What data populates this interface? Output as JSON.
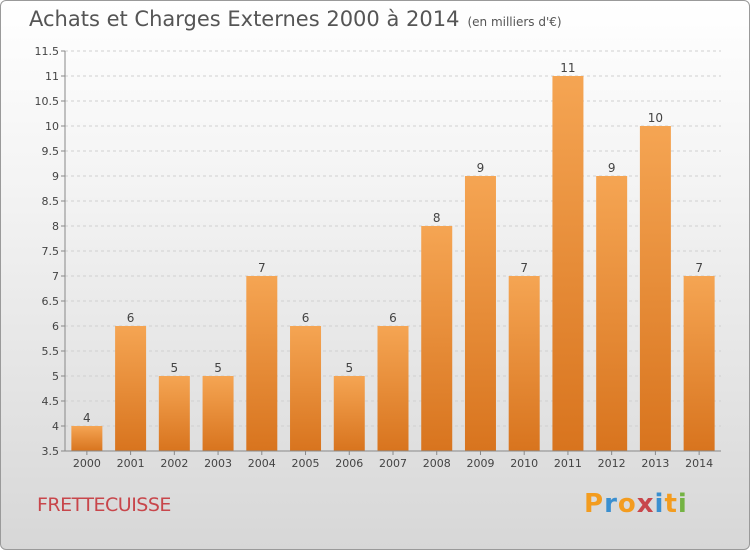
{
  "chart_data": {
    "type": "bar",
    "title": "Achats et Charges Externes 2000 à 2014",
    "unit_note": "(en milliers d'€)",
    "categories": [
      "2000",
      "2001",
      "2002",
      "2003",
      "2004",
      "2005",
      "2006",
      "2007",
      "2008",
      "2009",
      "2010",
      "2011",
      "2012",
      "2013",
      "2014"
    ],
    "values": [
      4,
      6,
      5,
      5,
      7,
      6,
      5,
      6,
      8,
      9,
      7,
      11,
      9,
      10,
      7
    ],
    "data_labels": [
      "4",
      "6",
      "5",
      "5",
      "7",
      "6",
      "5",
      "6",
      "8",
      "9",
      "7",
      "11",
      "9",
      "10",
      "7"
    ],
    "ylim": [
      3.5,
      11.5
    ],
    "yticks": [
      "3.5",
      "4",
      "4.5",
      "5",
      "5.5",
      "6",
      "6.5",
      "7",
      "7.5",
      "8",
      "8.5",
      "9",
      "9.5",
      "10",
      "10.5",
      "11",
      "11.5"
    ],
    "grid": true,
    "bar_color_top": "#f5a553",
    "bar_color_bottom": "#d8741e"
  },
  "footer": {
    "commune": "FRETTECUISSE",
    "brand": "Proxiti"
  },
  "colors": {
    "title": "#555555",
    "commune": "#c8464b",
    "brand_letters": [
      "#f39c1f",
      "#3a8fd0",
      "#f39c1f",
      "#c8464b",
      "#3a8fd0",
      "#f39c1f",
      "#74b343"
    ]
  }
}
